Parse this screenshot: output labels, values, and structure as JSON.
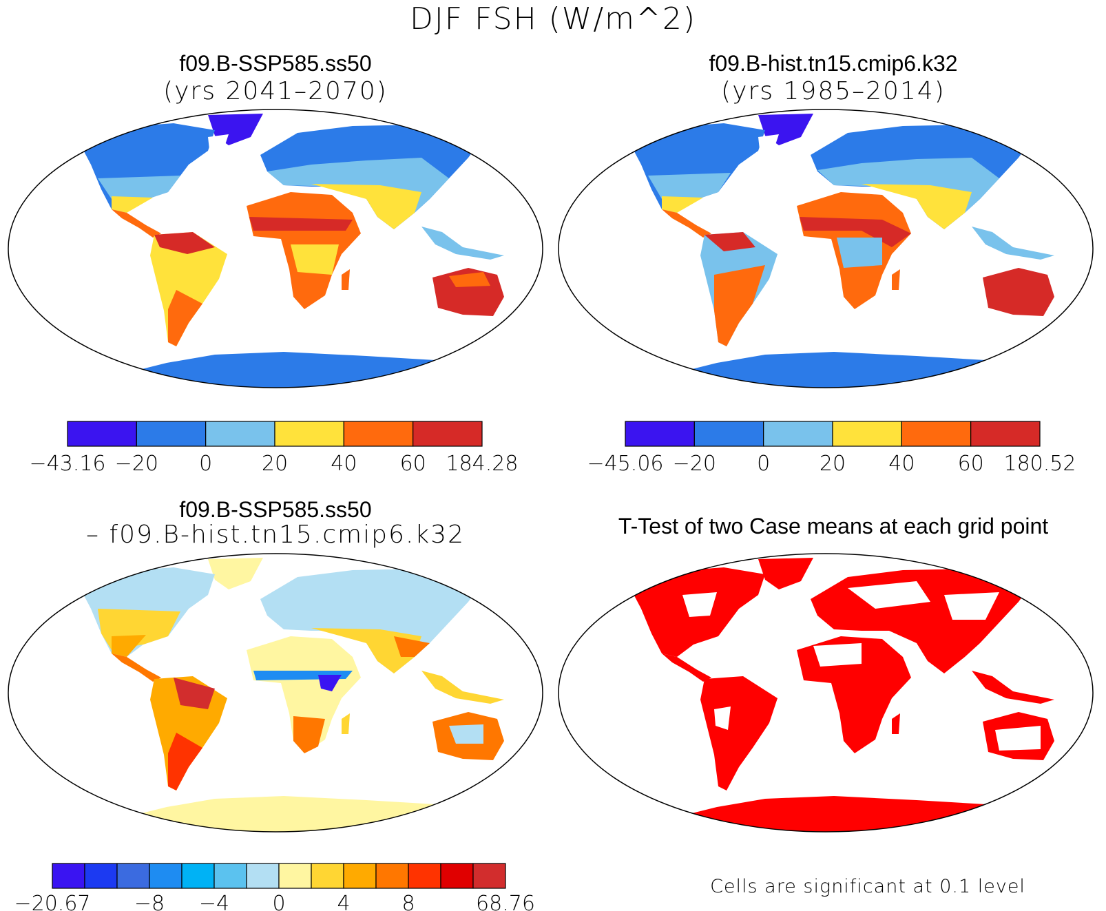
{
  "main_title": "DJF FSH (W/m^2)",
  "panels": {
    "future": {
      "name": "f09.B-SSP585.ss50",
      "years": "(yrs 2041–2070)"
    },
    "historical": {
      "name": "f09.B-hist.tn15.cmip6.k32",
      "years": "(yrs 1985–2014)"
    },
    "difference": {
      "name": "f09.B-SSP585.ss50",
      "minus": "– f09.B-hist.tn15.cmip6.k32"
    },
    "ttest": {
      "title": "T-Test of two Case means at each grid point",
      "note": "Cells are significant at 0.1 level",
      "significant_color": "#ff0000"
    }
  },
  "colorbars": {
    "future": {
      "colors": [
        "#3b14f0",
        "#2c7be8",
        "#79c2ec",
        "#ffe23b",
        "#ff6a0d",
        "#d62a27"
      ],
      "labels": [
        "−43.16",
        "−20",
        "0",
        "20",
        "40",
        "60",
        "184.28"
      ]
    },
    "historical": {
      "colors": [
        "#3b14f0",
        "#2c7be8",
        "#79c2ec",
        "#ffe23b",
        "#ff6a0d",
        "#d62a27"
      ],
      "labels": [
        "−45.06",
        "−20",
        "0",
        "20",
        "40",
        "60",
        "180.52"
      ]
    },
    "difference": {
      "colors": [
        "#3a14f2",
        "#1c3af2",
        "#3b6be0",
        "#1e8cf2",
        "#00b2f5",
        "#5bc2ef",
        "#b3dff3",
        "#fff6a1",
        "#ffd633",
        "#ffaa00",
        "#ff7700",
        "#ff3300",
        "#e00000",
        "#d22d2d"
      ],
      "labels": [
        {
          "text": "−20.67",
          "edge": 0
        },
        {
          "text": "−8",
          "edge": 3
        },
        {
          "text": "−4",
          "edge": 5
        },
        {
          "text": "0",
          "edge": 7
        },
        {
          "text": "4",
          "edge": 9
        },
        {
          "text": "8",
          "edge": 11
        },
        {
          "text": "68.76",
          "edge": 14
        }
      ]
    }
  }
}
